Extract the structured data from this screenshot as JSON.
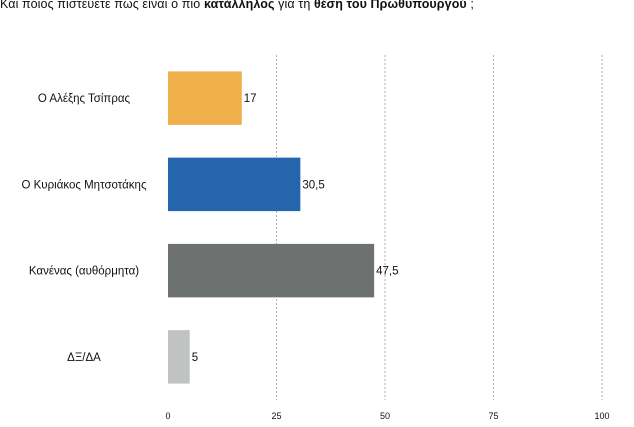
{
  "title": {
    "part1": "Και ποιος πιστεύετε πως είναι ο πιο ",
    "bold1": "κατάλληλος",
    "part2": " για τη ",
    "bold2": "θέση του Πρωθυπουργού",
    "part3": " ;"
  },
  "chart_data": {
    "type": "bar",
    "orientation": "horizontal",
    "categories": [
      "Ο Αλέξης Τσίπρας",
      "Ο Κυριάκος Μητσοτάκης",
      "Κανένας (αυθόρμητα)",
      "ΔΞ/ΔΑ"
    ],
    "values": [
      17,
      30.5,
      47.5,
      5
    ],
    "value_labels": [
      "17",
      "30,5",
      "47,5",
      "5"
    ],
    "colors": [
      "#EFB04B",
      "#2565AE",
      "#6D716F",
      "#C1C3C2"
    ],
    "xlim": [
      0,
      100
    ],
    "x_ticks": [
      0,
      25,
      50,
      75,
      100
    ],
    "x_tick_labels": [
      "0",
      "25",
      "50",
      "75",
      "100"
    ],
    "gridlines": "vertical dashed"
  }
}
